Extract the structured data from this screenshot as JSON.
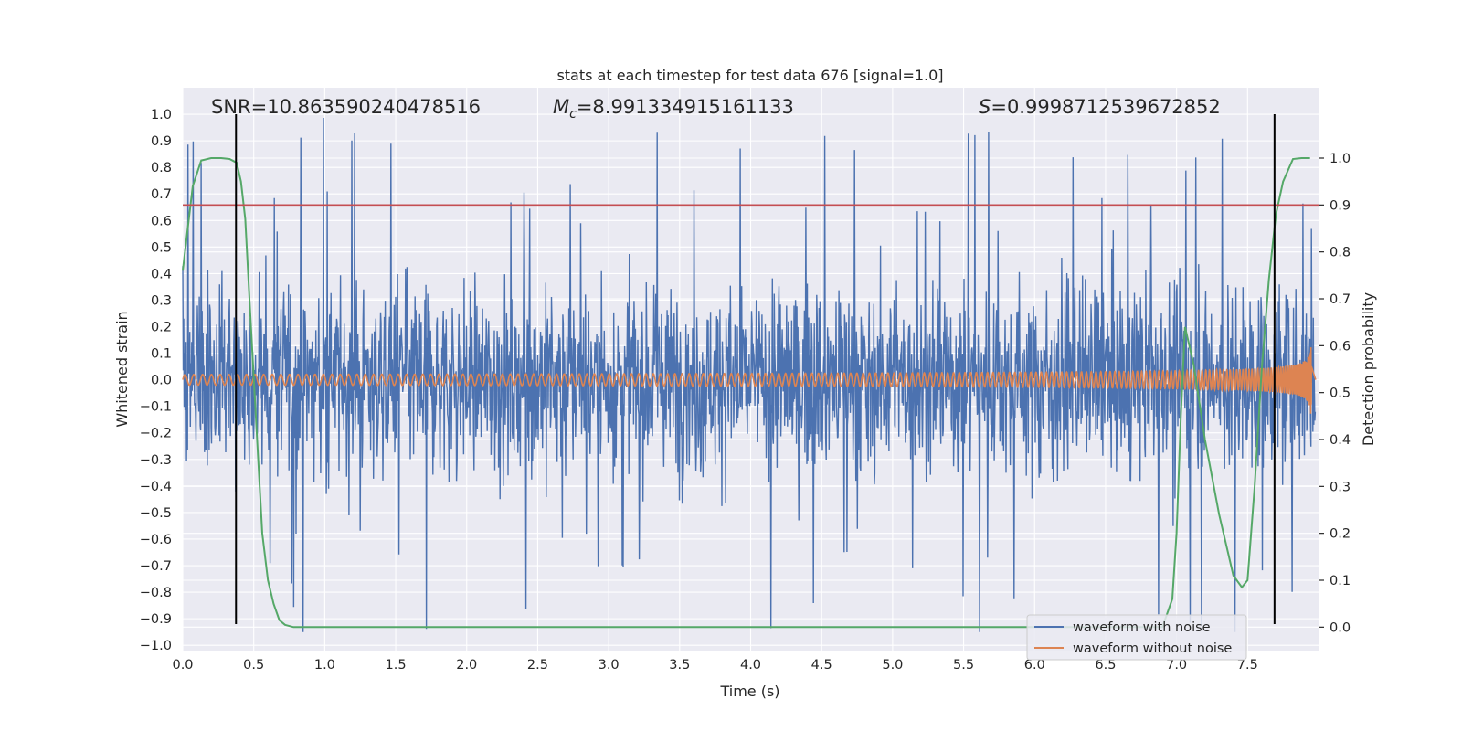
{
  "chart_data": {
    "type": "line",
    "title": "stats at each timestep for test data 676 [signal=1.0]",
    "xlabel": "Time (s)",
    "ylabel_left": "Whitened strain",
    "ylabel_right": "Detection probability",
    "xlim": [
      0.0,
      8.0
    ],
    "ylim_left": [
      -1.02,
      1.1
    ],
    "ylim_right": [
      -0.05,
      1.15
    ],
    "x_ticks": [
      0.0,
      0.5,
      1.0,
      1.5,
      2.0,
      2.5,
      3.0,
      3.5,
      4.0,
      4.5,
      5.0,
      5.5,
      6.0,
      6.5,
      7.0,
      7.5
    ],
    "x_tick_labels": [
      "0.0",
      "0.5",
      "1.0",
      "1.5",
      "2.0",
      "2.5",
      "3.0",
      "3.5",
      "4.0",
      "4.5",
      "5.0",
      "5.5",
      "6.0",
      "6.5",
      "7.0",
      "7.5"
    ],
    "y_left_ticks": [
      1.0,
      0.9,
      0.8,
      0.7,
      0.6,
      0.5,
      0.4,
      0.3,
      0.2,
      0.1,
      0.0,
      -0.1,
      -0.2,
      -0.3,
      -0.4,
      -0.5,
      -0.6,
      -0.7,
      -0.8,
      -0.9,
      -1.0
    ],
    "y_left_tick_labels": [
      "1.0",
      "0.9",
      "0.8",
      "0.7",
      "0.6",
      "0.5",
      "0.4",
      "0.3",
      "0.2",
      "0.1",
      "0.0",
      "−0.1",
      "−0.2",
      "−0.3",
      "−0.4",
      "−0.5",
      "−0.6",
      "−0.7",
      "−0.8",
      "−0.9",
      "−1.0"
    ],
    "y_right_ticks": [
      1.0,
      0.9,
      0.8,
      0.7,
      0.6,
      0.5,
      0.4,
      0.3,
      0.2,
      0.1,
      0.0
    ],
    "y_right_tick_labels": [
      "1.0",
      "0.9",
      "0.8",
      "0.7",
      "0.6",
      "0.5",
      "0.4",
      "0.3",
      "0.2",
      "0.1",
      "0.0"
    ],
    "annotations": {
      "snr": "SNR=10.863590240478516",
      "mc_symbol": "M",
      "mc_sub": "c",
      "mc_value": "=8.991334915161133",
      "s_symbol": "S",
      "s_value": "=0.9998712539672852"
    },
    "threshold": {
      "value_right_axis": 0.9,
      "color": "#c44e52"
    },
    "vertical_markers": {
      "x": [
        0.375,
        7.69
      ],
      "ymin_left": -0.92,
      "ymax_left": 1.0,
      "color": "#000000"
    },
    "series": [
      {
        "name": "waveform with noise",
        "axis": "left",
        "color": "#4c72b0",
        "description_level": "dense noise, |strain| mostly within 0.3–0.5 with spikes up to ~1.0",
        "envelope_typical": 0.45,
        "max_spike": 1.0
      },
      {
        "name": "waveform without noise",
        "axis": "left",
        "color": "#dd8452",
        "chirp": {
          "t0": 0.0,
          "tc": 7.95,
          "amp_start": 0.02,
          "amp_end": 0.32,
          "cycles_start_per_s": 16
        }
      },
      {
        "name": "",
        "axis": "right",
        "color": "#55a868",
        "x": [
          0.0,
          0.07,
          0.13,
          0.2,
          0.27,
          0.33,
          0.38,
          0.41,
          0.44,
          0.47,
          0.52,
          0.56,
          0.6,
          0.64,
          0.68,
          0.72,
          0.78,
          0.85,
          1.0,
          2.0,
          3.0,
          4.0,
          5.0,
          6.0,
          6.5,
          6.9,
          6.97,
          7.0,
          7.03,
          7.06,
          7.12,
          7.2,
          7.3,
          7.4,
          7.46,
          7.5,
          7.55,
          7.6,
          7.65,
          7.7,
          7.75,
          7.82,
          7.88,
          7.94
        ],
        "y": [
          0.76,
          0.94,
          0.995,
          1.0,
          1.0,
          0.998,
          0.99,
          0.95,
          0.87,
          0.7,
          0.42,
          0.2,
          0.1,
          0.05,
          0.015,
          0.005,
          0.0,
          0.0,
          0.0,
          0.0,
          0.0,
          0.0,
          0.0,
          0.0,
          0.0,
          0.0,
          0.06,
          0.2,
          0.45,
          0.64,
          0.56,
          0.4,
          0.24,
          0.11,
          0.085,
          0.1,
          0.3,
          0.55,
          0.74,
          0.88,
          0.95,
          0.998,
          1.0,
          1.0
        ]
      }
    ],
    "legend": {
      "placement": "lower-right",
      "items": [
        {
          "label": "waveform with noise",
          "color": "#4c72b0"
        },
        {
          "label": "waveform without noise",
          "color": "#dd8452"
        }
      ]
    },
    "colors": {
      "axes_background": "#eaeaf2",
      "grid": "#ffffff"
    }
  }
}
